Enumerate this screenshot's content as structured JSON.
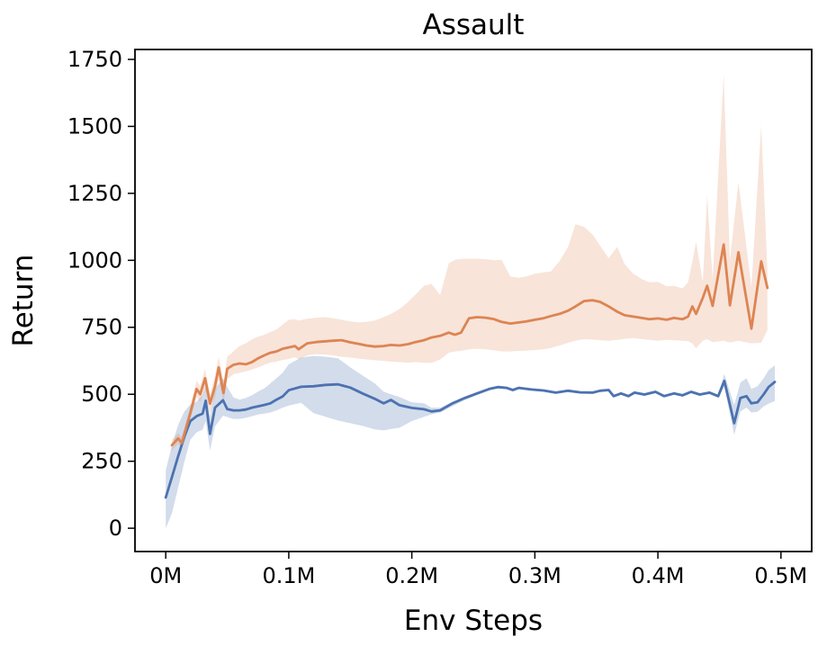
{
  "chart_data": {
    "type": "line",
    "title": "Assault",
    "xlabel": "Env Steps",
    "ylabel": "Return",
    "grid": false,
    "legend": "none",
    "xlim": [
      -0.025,
      0.525
    ],
    "ylim": [
      -87,
      1787
    ],
    "x_ticks": {
      "values": [
        0,
        0.1,
        0.2,
        0.3,
        0.4,
        0.5
      ],
      "labels": [
        "0M",
        "0.1M",
        "0.2M",
        "0.3M",
        "0.4M",
        "0.5M"
      ]
    },
    "y_ticks": {
      "values": [
        0,
        250,
        500,
        750,
        1000,
        1250,
        1500,
        1750
      ],
      "labels": [
        "0",
        "250",
        "500",
        "750",
        "1000",
        "1250",
        "1500",
        "1750"
      ]
    },
    "colors": {
      "blue_line": "#4C72B0",
      "orange_line": "#DD8452",
      "blue_band": "rgba(76,114,176,0.25)",
      "orange_band": "rgba(221,132,82,0.22)",
      "axis": "#000000"
    },
    "series": [
      {
        "name": "blue",
        "color": "#4C72B0",
        "x": [
          0.0,
          0.005,
          0.01,
          0.015,
          0.02,
          0.025,
          0.03,
          0.0325,
          0.036,
          0.04,
          0.0465,
          0.05,
          0.055,
          0.06,
          0.065,
          0.07,
          0.075,
          0.08,
          0.085,
          0.09,
          0.095,
          0.1,
          0.11,
          0.12,
          0.13,
          0.14,
          0.15,
          0.16,
          0.17,
          0.177,
          0.183,
          0.19,
          0.2,
          0.21,
          0.216,
          0.223,
          0.233,
          0.243,
          0.253,
          0.263,
          0.27,
          0.277,
          0.282,
          0.287,
          0.297,
          0.307,
          0.317,
          0.327,
          0.337,
          0.347,
          0.353,
          0.36,
          0.364,
          0.37,
          0.376,
          0.381,
          0.389,
          0.398,
          0.405,
          0.413,
          0.42,
          0.427,
          0.434,
          0.442,
          0.449,
          0.454,
          0.462,
          0.467,
          0.472,
          0.476,
          0.481,
          0.486,
          0.49,
          0.495
        ],
        "mean": [
          115,
          190,
          268,
          340,
          400,
          418,
          428,
          476,
          352,
          450,
          478,
          445,
          440,
          440,
          443,
          450,
          455,
          460,
          466,
          480,
          492,
          515,
          528,
          530,
          535,
          537,
          525,
          503,
          483,
          466,
          479,
          459,
          449,
          444,
          436,
          440,
          466,
          486,
          503,
          520,
          527,
          524,
          516,
          524,
          518,
          514,
          506,
          513,
          507,
          506,
          513,
          516,
          493,
          503,
          493,
          506,
          499,
          509,
          493,
          503,
          496,
          509,
          499,
          506,
          493,
          550,
          392,
          486,
          493,
          466,
          470,
          500,
          527,
          546
        ],
        "low": [
          0,
          55,
          150,
          245,
          330,
          358,
          368,
          400,
          290,
          380,
          420,
          415,
          408,
          408,
          412,
          418,
          424,
          428,
          432,
          440,
          450,
          458,
          468,
          430,
          416,
          402,
          392,
          382,
          369,
          365,
          370,
          375,
          400,
          416,
          425,
          432,
          455,
          478,
          497,
          515,
          522,
          519,
          511,
          519,
          513,
          509,
          501,
          508,
          502,
          501,
          508,
          511,
          488,
          498,
          488,
          501,
          494,
          504,
          488,
          498,
          491,
          504,
          494,
          501,
          488,
          528,
          349,
          436,
          450,
          432,
          435,
          455,
          465,
          475
        ],
        "high": [
          215,
          310,
          385,
          435,
          462,
          472,
          498,
          530,
          415,
          520,
          560,
          528,
          488,
          480,
          486,
          496,
          510,
          522,
          540,
          560,
          580,
          612,
          637,
          643,
          640,
          634,
          600,
          570,
          540,
          510,
          500,
          490,
          470,
          466,
          450,
          450,
          472,
          492,
          509,
          525,
          532,
          529,
          521,
          529,
          523,
          519,
          511,
          518,
          512,
          511,
          518,
          521,
          498,
          508,
          498,
          511,
          504,
          514,
          498,
          508,
          501,
          514,
          504,
          511,
          498,
          576,
          460,
          543,
          560,
          520,
          530,
          560,
          590,
          608
        ]
      },
      {
        "name": "orange",
        "color": "#DD8452",
        "x": [
          0.005,
          0.01,
          0.013,
          0.02,
          0.025,
          0.028,
          0.032,
          0.036,
          0.04,
          0.043,
          0.047,
          0.05,
          0.055,
          0.06,
          0.065,
          0.07,
          0.075,
          0.08,
          0.085,
          0.09,
          0.095,
          0.1,
          0.105,
          0.108,
          0.115,
          0.122,
          0.13,
          0.136,
          0.143,
          0.15,
          0.157,
          0.163,
          0.17,
          0.177,
          0.183,
          0.19,
          0.197,
          0.203,
          0.21,
          0.216,
          0.223,
          0.23,
          0.235,
          0.24,
          0.2465,
          0.253,
          0.26,
          0.267,
          0.273,
          0.28,
          0.287,
          0.293,
          0.3,
          0.307,
          0.313,
          0.32,
          0.327,
          0.333,
          0.34,
          0.347,
          0.353,
          0.36,
          0.367,
          0.373,
          0.38,
          0.387,
          0.393,
          0.4,
          0.407,
          0.413,
          0.42,
          0.4245,
          0.428,
          0.431,
          0.4365,
          0.44,
          0.4445,
          0.4535,
          0.4585,
          0.4655,
          0.476,
          0.484,
          0.489
        ],
        "mean": [
          310,
          335,
          318,
          430,
          520,
          500,
          560,
          465,
          530,
          600,
          505,
          595,
          610,
          615,
          612,
          620,
          634,
          645,
          655,
          660,
          670,
          675,
          680,
          668,
          690,
          695,
          698,
          700,
          702,
          694,
          688,
          682,
          678,
          680,
          684,
          682,
          687,
          695,
          702,
          712,
          718,
          730,
          722,
          730,
          784,
          788,
          786,
          780,
          770,
          764,
          768,
          772,
          778,
          784,
          792,
          800,
          812,
          828,
          848,
          851,
          845,
          828,
          808,
          795,
          790,
          785,
          780,
          783,
          778,
          785,
          780,
          790,
          828,
          800,
          860,
          905,
          830,
          1059,
          832,
          1030,
          745,
          996,
          897
        ],
        "low": [
          290,
          315,
          298,
          405,
          490,
          470,
          520,
          430,
          490,
          555,
          470,
          555,
          575,
          580,
          585,
          592,
          600,
          610,
          618,
          622,
          628,
          632,
          638,
          630,
          645,
          650,
          648,
          645,
          640,
          637,
          633,
          630,
          627,
          625,
          622,
          620,
          618,
          620,
          618,
          617,
          630,
          655,
          660,
          662,
          668,
          670,
          668,
          664,
          660,
          660,
          662,
          663,
          665,
          668,
          673,
          682,
          692,
          700,
          706,
          704,
          702,
          700,
          703,
          707,
          710,
          706,
          703,
          700,
          703,
          702,
          700,
          698,
          690,
          672,
          700,
          706,
          695,
          700,
          693,
          700,
          690,
          692,
          740
        ],
        "high": [
          330,
          355,
          340,
          455,
          550,
          530,
          595,
          500,
          570,
          640,
          545,
          640,
          660,
          680,
          690,
          705,
          715,
          722,
          732,
          742,
          760,
          778,
          780,
          775,
          782,
          786,
          788,
          784,
          778,
          772,
          768,
          770,
          775,
          788,
          800,
          818,
          845,
          872,
          905,
          912,
          870,
          989,
          1002,
          1005,
          1006,
          1006,
          1004,
          1000,
          1002,
          940,
          935,
          940,
          950,
          955,
          958,
          996,
          1050,
          1135,
          1125,
          1096,
          1055,
          1008,
          1050,
          985,
          950,
          930,
          918,
          920,
          903,
          905,
          895,
          918,
          996,
          1069,
          920,
          1242,
          930,
          1694,
          1000,
          1292,
          900,
          1504,
          960
        ]
      }
    ]
  }
}
